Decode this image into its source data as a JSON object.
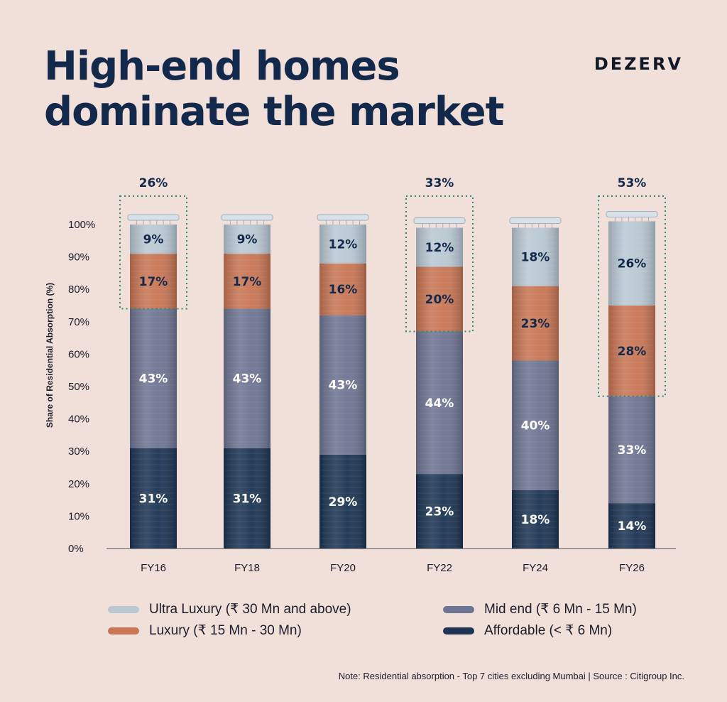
{
  "header": {
    "title": "High-end homes\ndominate the market",
    "brand": "DEZERV"
  },
  "colors": {
    "ultra_luxury": "#b9c8d3",
    "luxury": "#c87654",
    "mid_end": "#6e7593",
    "affordable": "#1d3553",
    "highlight": "#2e8b6f",
    "text_dark": "#13294b"
  },
  "chart_data": {
    "type": "bar",
    "stacked": true,
    "categories": [
      "FY16",
      "FY18",
      "FY20",
      "FY22",
      "FY24",
      "FY26"
    ],
    "series": [
      {
        "name": "Affordable (< ₹ 6 Mn)",
        "key": "affordable",
        "values": [
          31,
          31,
          29,
          23,
          18,
          14
        ],
        "labels": [
          "31%",
          "31%",
          "29%",
          "23%",
          "18%",
          "14%"
        ]
      },
      {
        "name": "Mid end (₹ 6 Mn - 15 Mn)",
        "key": "mid_end",
        "values": [
          43,
          43,
          43,
          44,
          40,
          33
        ],
        "labels": [
          "43%",
          "43%",
          "43%",
          "44%",
          "40%",
          "33%"
        ]
      },
      {
        "name": "Luxury (₹ 15 Mn - 30 Mn)",
        "key": "luxury",
        "values": [
          17,
          17,
          16,
          20,
          23,
          28
        ],
        "labels": [
          "17%",
          "17%",
          "16%",
          "20%",
          "23%",
          "28%"
        ]
      },
      {
        "name": "Ultra Luxury (₹ 30 Mn and above)",
        "key": "ultra_luxury",
        "values": [
          9,
          9,
          12,
          12,
          18,
          26
        ],
        "labels": [
          "9%",
          "9%",
          "12%",
          "12%",
          "18%",
          "26%"
        ]
      }
    ],
    "highlights": [
      {
        "category": "FY16",
        "value": 26,
        "label": "26%"
      },
      {
        "category": "FY22",
        "value": 33,
        "label": "33%"
      },
      {
        "category": "FY26",
        "value": 53,
        "label": "53%"
      }
    ],
    "ylabel": "Share of Residential Absorption (%)",
    "yticks": [
      "0%",
      "10%",
      "20%",
      "30%",
      "40%",
      "50%",
      "60%",
      "70%",
      "80%",
      "90%",
      "100%"
    ],
    "ylim": [
      0,
      100
    ],
    "grid": false,
    "legend_position": "bottom"
  },
  "legend": [
    {
      "key": "ultra_luxury",
      "label": "Ultra Luxury (₹ 30 Mn and above)"
    },
    {
      "key": "luxury",
      "label": "Luxury (₹ 15 Mn - 30 Mn)"
    },
    {
      "key": "mid_end",
      "label": "Mid end (₹ 6 Mn - 15 Mn)"
    },
    {
      "key": "affordable",
      "label": "Affordable (< ₹ 6 Mn)"
    }
  ],
  "note": "Note: Residential absorption - Top 7 cities excluding Mumbai | Source : Citigroup Inc."
}
